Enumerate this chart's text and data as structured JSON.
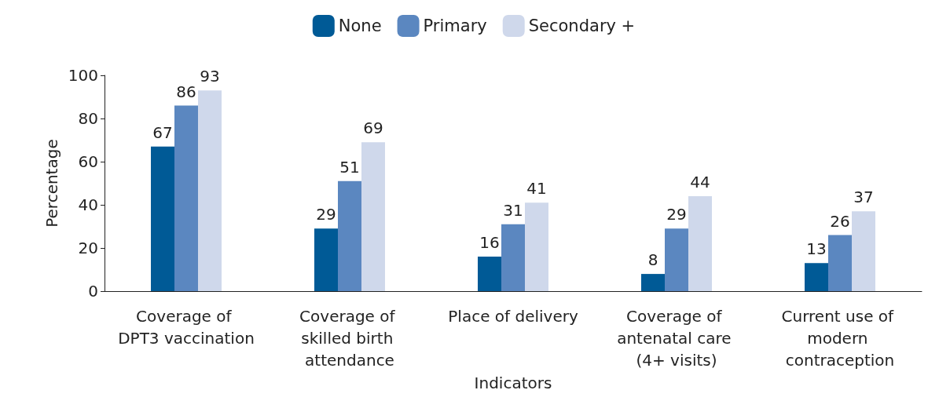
{
  "chart_data": {
    "type": "bar",
    "xlabel": "Indicators",
    "ylabel": "Percentage",
    "categories": [
      "Coverage of DPT3 vaccination",
      "Coverage of skilled birth attendance",
      "Place of delivery",
      "Coverage of antenatal care (4+ visits)",
      "Current use of modern contraception"
    ],
    "series": [
      {
        "name": "None",
        "color": "#005a96",
        "values": [
          67,
          29,
          16,
          8,
          13
        ]
      },
      {
        "name": "Primary",
        "color": "#5b87c0",
        "values": [
          86,
          51,
          31,
          29,
          26
        ]
      },
      {
        "name": "Secondary +",
        "color": "#cfd8eb",
        "values": [
          93,
          69,
          41,
          44,
          37
        ]
      }
    ],
    "ylim": [
      0,
      100
    ],
    "yticks": [
      0,
      20,
      40,
      60,
      80,
      100
    ],
    "grid": false,
    "legend": "top",
    "data_labels": true
  }
}
